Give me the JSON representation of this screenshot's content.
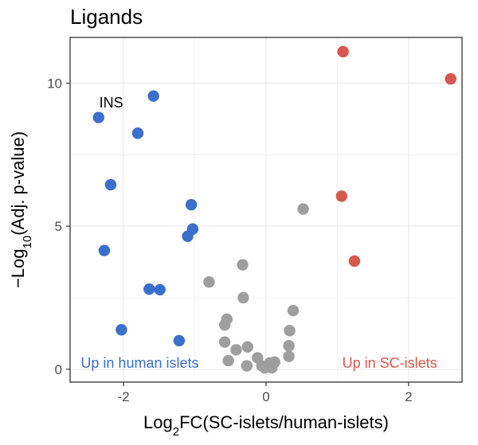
{
  "chart_data": {
    "type": "scatter",
    "title": "Ligands",
    "xlabel": {
      "prefix": "Log",
      "sub": "2",
      "suffix": "FC(SC-islets/human-islets)"
    },
    "ylabel": {
      "prefix": "−Log",
      "sub": "10",
      "suffix": "(Adj. p-value)"
    },
    "xlim": [
      -2.75,
      2.75
    ],
    "ylim": [
      -0.45,
      11.6
    ],
    "xticks": [
      -2,
      0,
      2
    ],
    "xtick_labels": [
      "-2",
      "0",
      "2"
    ],
    "yticks": [
      0,
      5,
      10
    ],
    "ytick_labels": [
      "0",
      "5",
      "10"
    ],
    "grid": true,
    "colors": {
      "up_human": "#3A6FCC",
      "up_sc": "#D8574E",
      "ns": "#9E9E9E",
      "grid": "#EBEBEB",
      "panel_border": "#333333"
    },
    "annotations": [
      {
        "text": "Up in human islets",
        "color": "up_human",
        "x": -2.6,
        "y": 0.05,
        "anchor": "start"
      },
      {
        "text": "Up in SC-islets",
        "color": "up_sc",
        "x": 2.4,
        "y": 0.05,
        "anchor": "end"
      }
    ],
    "point_labels": [
      {
        "text": "INS",
        "x": -2.34,
        "y": 9.15
      }
    ],
    "series": [
      {
        "group": "up_human",
        "points": [
          [
            -1.58,
            9.55
          ],
          [
            -2.35,
            8.8
          ],
          [
            -1.8,
            8.25
          ],
          [
            -2.18,
            6.45
          ],
          [
            -1.05,
            5.75
          ],
          [
            -1.03,
            4.9
          ],
          [
            -1.1,
            4.65
          ],
          [
            -2.27,
            4.15
          ],
          [
            -1.64,
            2.8
          ],
          [
            -1.49,
            2.78
          ],
          [
            -2.03,
            1.38
          ],
          [
            -1.22,
            1.0
          ]
        ]
      },
      {
        "group": "up_sc",
        "points": [
          [
            1.08,
            11.1
          ],
          [
            2.59,
            10.15
          ],
          [
            1.06,
            6.05
          ],
          [
            1.24,
            3.78
          ]
        ]
      },
      {
        "group": "ns",
        "points": [
          [
            0.52,
            5.6
          ],
          [
            -0.33,
            3.65
          ],
          [
            -0.8,
            3.05
          ],
          [
            -0.32,
            2.5
          ],
          [
            0.38,
            2.05
          ],
          [
            -0.55,
            1.75
          ],
          [
            -0.58,
            1.55
          ],
          [
            0.33,
            1.35
          ],
          [
            -0.58,
            0.95
          ],
          [
            -0.26,
            0.78
          ],
          [
            0.32,
            0.82
          ],
          [
            -0.42,
            0.68
          ],
          [
            -0.12,
            0.4
          ],
          [
            0.32,
            0.45
          ],
          [
            -0.53,
            0.3
          ],
          [
            -0.27,
            0.12
          ],
          [
            -0.06,
            0.12
          ],
          [
            0.05,
            0.22
          ],
          [
            0.12,
            0.25
          ],
          [
            -0.02,
            0.05
          ],
          [
            0.08,
            0.05
          ]
        ]
      }
    ]
  }
}
